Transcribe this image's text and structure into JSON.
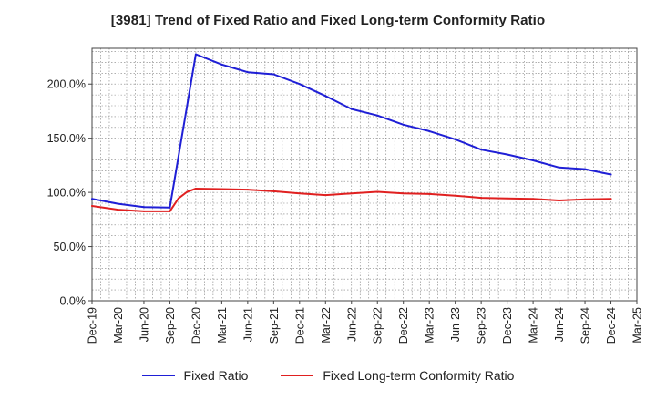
{
  "title": "[3981]  Trend of Fixed Ratio and Fixed Long-term Conformity Ratio",
  "colors": {
    "fixed_ratio": "#1f1fd6",
    "conformity_ratio": "#e02020",
    "grid": "#808080"
  },
  "legend": {
    "fixed_ratio_label": "Fixed Ratio",
    "conformity_ratio_label": "Fixed Long-term Conformity Ratio"
  },
  "chart_data": {
    "type": "line",
    "title": "[3981]  Trend of Fixed Ratio and Fixed Long-term Conformity Ratio",
    "xlabel": "",
    "ylabel": "",
    "ylim": [
      0,
      233
    ],
    "y_ticks": [
      0,
      50,
      100,
      150,
      200
    ],
    "y_tick_labels": [
      "0.0%",
      "50.0%",
      "100.0%",
      "150.0%",
      "200.0%"
    ],
    "x_tick_labels": [
      "Dec-19",
      "Mar-20",
      "Jun-20",
      "Sep-20",
      "Dec-20",
      "Mar-21",
      "Jun-21",
      "Sep-21",
      "Dec-21",
      "Mar-22",
      "Jun-22",
      "Sep-22",
      "Dec-22",
      "Mar-23",
      "Jun-23",
      "Sep-23",
      "Dec-23",
      "Mar-24",
      "Jun-24",
      "Sep-24",
      "Dec-24",
      "Mar-25"
    ],
    "grid": true,
    "legend_position": "bottom",
    "series": [
      {
        "name": "Fixed Ratio",
        "x": [
          "Dec-19",
          "Mar-20",
          "Jun-20",
          "Sep-20",
          "Dec-20",
          "Mar-21",
          "Jun-21",
          "Sep-21",
          "Dec-21",
          "Mar-22",
          "Jun-22",
          "Sep-22",
          "Dec-22",
          "Mar-23",
          "Jun-23",
          "Sep-23",
          "Dec-23",
          "Mar-24",
          "Jun-24",
          "Sep-24",
          "Dec-24"
        ],
        "values": [
          94.0,
          89.5,
          86.5,
          86.0,
          227.5,
          218.0,
          211.0,
          209.0,
          200.0,
          189.0,
          177.0,
          171.0,
          162.5,
          156.5,
          149.0,
          139.5,
          135.0,
          129.5,
          123.0,
          121.5,
          116.5
        ]
      },
      {
        "name": "Fixed Long-term Conformity Ratio",
        "x": [
          "Dec-19",
          "Mar-20",
          "Jun-20",
          "Sep-20",
          "Oct-20",
          "Nov-20",
          "Dec-20",
          "Mar-21",
          "Jun-21",
          "Sep-21",
          "Dec-21",
          "Mar-22",
          "Jun-22",
          "Sep-22",
          "Dec-22",
          "Mar-23",
          "Jun-23",
          "Sep-23",
          "Dec-23",
          "Mar-24",
          "Jun-24",
          "Sep-24",
          "Dec-24"
        ],
        "values": [
          87.5,
          84.0,
          82.5,
          82.5,
          94.5,
          100.5,
          103.5,
          103.0,
          102.5,
          101.0,
          99.0,
          97.5,
          99.0,
          100.5,
          99.0,
          98.5,
          97.0,
          95.0,
          94.5,
          94.0,
          92.5,
          93.5,
          94.0
        ]
      }
    ]
  }
}
